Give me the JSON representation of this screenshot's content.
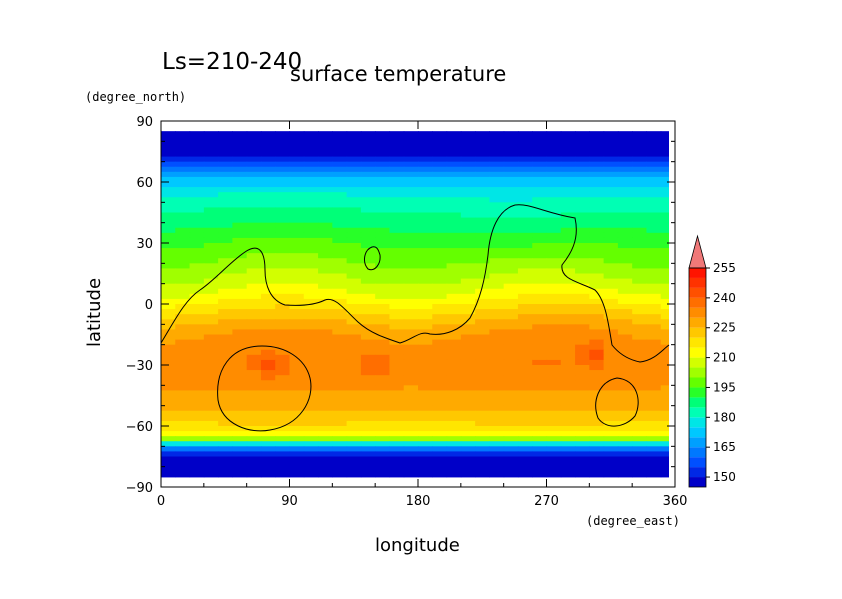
{
  "chart_data": {
    "type": "heatmap",
    "title": "surface temperature",
    "subtitle": "Ls=210-240",
    "xlabel": "longitude",
    "ylabel": "latitude",
    "x_units": "(degree_east)",
    "y_units": "(degree_north)",
    "xlim": [
      0,
      360
    ],
    "ylim": [
      -90,
      90
    ],
    "x_ticks": [
      0,
      90,
      180,
      270,
      360
    ],
    "y_ticks": [
      90,
      60,
      30,
      0,
      -30,
      -60,
      -90
    ],
    "colorbar": {
      "levels": [
        145,
        150,
        155,
        160,
        165,
        170,
        175,
        180,
        185,
        190,
        195,
        200,
        205,
        210,
        215,
        220,
        225,
        230,
        235,
        240,
        245,
        250,
        255,
        260
      ],
      "tick_labels": [
        150,
        165,
        180,
        195,
        210,
        225,
        240,
        255
      ],
      "colors": [
        "#0000c8",
        "#0028e6",
        "#0050ff",
        "#0078ff",
        "#00a0ff",
        "#00c8ff",
        "#00e6e6",
        "#00ffb4",
        "#00ff78",
        "#28ff28",
        "#64ff00",
        "#a0ff00",
        "#d2ff00",
        "#ffff00",
        "#ffe600",
        "#ffc800",
        "#ffaa00",
        "#ff8c00",
        "#ff6e00",
        "#ff5000",
        "#ff3200",
        "#ff1400"
      ],
      "extend_color": "#f07878"
    },
    "latitude_profile": {
      "lat": [
        85,
        80,
        75,
        70,
        65,
        60,
        55,
        50,
        45,
        40,
        35,
        30,
        25,
        20,
        15,
        10,
        5,
        0,
        -5,
        -10,
        -15,
        -20,
        -25,
        -30,
        -35,
        -40,
        -45,
        -50,
        -55,
        -60,
        -65,
        -70,
        -75,
        -80,
        -85
      ],
      "temp": [
        148,
        146,
        150,
        160,
        170,
        178,
        184,
        188,
        191,
        194,
        197,
        200,
        203,
        206,
        209,
        212,
        216,
        221,
        226,
        231,
        235,
        237,
        238,
        239,
        238,
        236,
        234,
        232,
        228,
        224,
        218,
        170,
        155,
        148,
        146
      ]
    },
    "hotspots": [
      {
        "lon": 75,
        "lat": -30,
        "temp": 245
      },
      {
        "lon": 150,
        "lat": -30,
        "temp": 245
      },
      {
        "lon": 305,
        "lat": -25,
        "temp": 245
      }
    ]
  }
}
